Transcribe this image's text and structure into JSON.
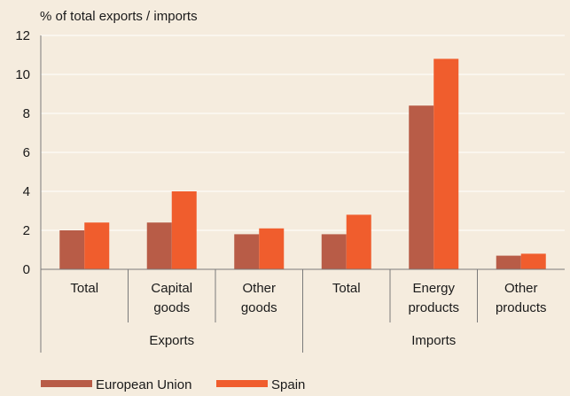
{
  "chart_data": {
    "type": "bar",
    "ylabel": "% of total exports / imports",
    "ylim": [
      0,
      12
    ],
    "yticks": [
      "0",
      "2",
      "4",
      "6",
      "8",
      "10",
      "12"
    ],
    "grid": true,
    "legend_position": "bottom",
    "categories": [
      {
        "lines": [
          "Total"
        ],
        "group": "Exports"
      },
      {
        "lines": [
          "Capital",
          "goods"
        ],
        "group": "Exports"
      },
      {
        "lines": [
          "Other",
          "goods"
        ],
        "group": "Exports"
      },
      {
        "lines": [
          "Total"
        ],
        "group": "Imports"
      },
      {
        "lines": [
          "Energy",
          "products"
        ],
        "group": "Imports"
      },
      {
        "lines": [
          "Other",
          "products"
        ],
        "group": "Imports"
      }
    ],
    "groups": [
      "Exports",
      "Imports"
    ],
    "series": [
      {
        "name": "European Union",
        "color": "#b85c47",
        "values": [
          2.0,
          2.4,
          1.8,
          1.8,
          8.4,
          0.7
        ]
      },
      {
        "name": "Spain",
        "color": "#f05d2d",
        "values": [
          2.4,
          4.0,
          2.1,
          2.8,
          10.8,
          0.8
        ]
      }
    ]
  }
}
